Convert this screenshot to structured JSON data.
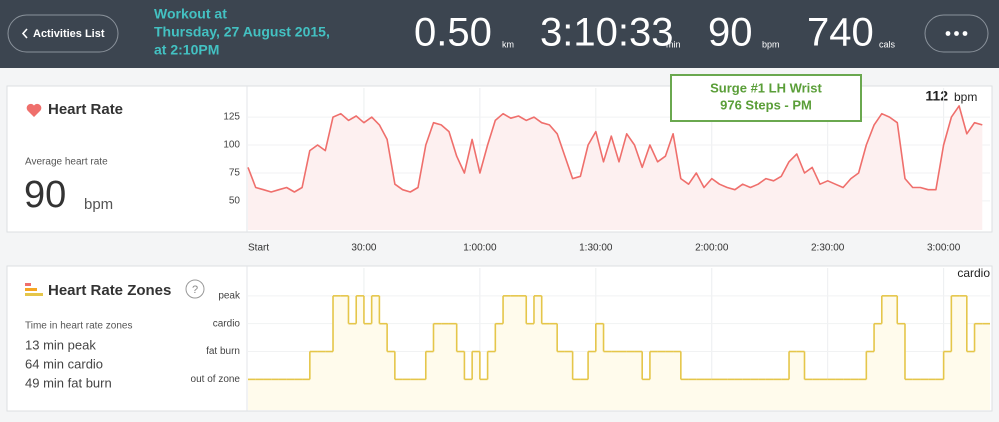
{
  "header": {
    "back_button": "Activities List",
    "workout_title": [
      "Workout at",
      "Thursday, 27 August 2015,",
      "at 2:10PM"
    ],
    "stats": [
      {
        "value": "0.50",
        "unit": "km"
      },
      {
        "value": "3:10:33",
        "unit": "min"
      },
      {
        "value": "90",
        "unit": "bpm"
      },
      {
        "value": "740",
        "unit": "cals"
      }
    ]
  },
  "annotation": [
    "Surge #1 LH Wrist",
    "976 Steps - PM"
  ],
  "chart_data": [
    {
      "type": "line",
      "title": "Heart Rate",
      "summary_label": "Average heart rate",
      "summary_value": 90,
      "summary_unit": "bpm",
      "current_value": 112,
      "current_unit": "bpm",
      "x": [
        0,
        2,
        4,
        6,
        8,
        10,
        12,
        14,
        16,
        18,
        20,
        22,
        24,
        26,
        28,
        30,
        32,
        34,
        36,
        38,
        40,
        42,
        44,
        46,
        48,
        50,
        52,
        54,
        56,
        58,
        60,
        62,
        64,
        66,
        68,
        70,
        72,
        74,
        76,
        78,
        80,
        82,
        84,
        86,
        88,
        90,
        92,
        94,
        96,
        98,
        100,
        102,
        104,
        106,
        108,
        110,
        112,
        114,
        116,
        118,
        120,
        122,
        124,
        126,
        128,
        130,
        132,
        134,
        136,
        138,
        140,
        142,
        144,
        146,
        148,
        150,
        152,
        154,
        156,
        158,
        160,
        162,
        164,
        166,
        168,
        170,
        172,
        174,
        176,
        178,
        180,
        182,
        184,
        186,
        188,
        190
      ],
      "series": [
        {
          "color": "#ef6f6c",
          "values": [
            80,
            62,
            60,
            58,
            60,
            62,
            58,
            62,
            95,
            100,
            95,
            125,
            128,
            122,
            126,
            120,
            125,
            118,
            105,
            65,
            60,
            58,
            62,
            100,
            120,
            118,
            112,
            90,
            75,
            105,
            75,
            100,
            122,
            128,
            124,
            126,
            122,
            125,
            120,
            118,
            110,
            90,
            70,
            72,
            100,
            112,
            85,
            108,
            85,
            110,
            100,
            80,
            100,
            85,
            90,
            110,
            70,
            65,
            75,
            62,
            70,
            65,
            62,
            60,
            65,
            62,
            65,
            70,
            68,
            72,
            85,
            92,
            75,
            80,
            65,
            68,
            65,
            62,
            70,
            75,
            100,
            118,
            128,
            125,
            120,
            70,
            62,
            62,
            60,
            60,
            100,
            125,
            135,
            110,
            120,
            118
          ]
        }
      ],
      "xlim": [
        0,
        192
      ],
      "xticks": [
        {
          "value": 0,
          "label": "Start"
        },
        {
          "value": 30,
          "label": "30:00"
        },
        {
          "value": 60,
          "label": "1:00:00"
        },
        {
          "value": 90,
          "label": "1:30:00"
        },
        {
          "value": 120,
          "label": "2:00:00"
        },
        {
          "value": 150,
          "label": "2:30:00"
        },
        {
          "value": 180,
          "label": "3:00:00"
        }
      ],
      "ylim": [
        24,
        151
      ],
      "yticks": [
        50,
        75,
        100,
        125
      ],
      "grid": true,
      "area_color": "#fdf0f0"
    },
    {
      "type": "step",
      "title": "Heart Rate Zones",
      "help_icon": "?",
      "summary_label": "Time in heart rate zones",
      "summary_lines": [
        "13 min peak",
        "64 min cardio",
        "49 min fat burn"
      ],
      "current_zone": "cardio",
      "x": [
        0,
        2,
        4,
        6,
        8,
        10,
        12,
        14,
        16,
        18,
        20,
        22,
        24,
        26,
        28,
        30,
        32,
        34,
        36,
        38,
        40,
        42,
        44,
        46,
        48,
        50,
        52,
        54,
        56,
        58,
        60,
        62,
        64,
        66,
        68,
        70,
        72,
        74,
        76,
        78,
        80,
        82,
        84,
        86,
        88,
        90,
        92,
        94,
        96,
        98,
        100,
        102,
        104,
        106,
        108,
        110,
        112,
        114,
        116,
        118,
        120,
        122,
        124,
        126,
        128,
        130,
        132,
        134,
        136,
        138,
        140,
        142,
        144,
        146,
        148,
        150,
        152,
        154,
        156,
        158,
        160,
        162,
        164,
        166,
        168,
        170,
        172,
        174,
        176,
        178,
        180,
        182,
        184,
        186,
        188,
        190
      ],
      "series": [
        {
          "color": "#e5c64a",
          "values": [
            0,
            0,
            0,
            0,
            0,
            0,
            0,
            0,
            1,
            1,
            1,
            3,
            3,
            2,
            3,
            2,
            3,
            2,
            1,
            0,
            0,
            0,
            0,
            1,
            2,
            2,
            2,
            1,
            0,
            1,
            0,
            1,
            2,
            3,
            3,
            3,
            2,
            3,
            2,
            2,
            1,
            1,
            0,
            0,
            1,
            2,
            1,
            1,
            1,
            1,
            1,
            0,
            1,
            1,
            1,
            1,
            0,
            0,
            0,
            0,
            0,
            0,
            0,
            0,
            0,
            0,
            0,
            0,
            0,
            0,
            1,
            1,
            0,
            0,
            0,
            0,
            0,
            0,
            0,
            0,
            1,
            2,
            3,
            3,
            2,
            0,
            0,
            0,
            0,
            0,
            1,
            3,
            3,
            1,
            2,
            2
          ]
        }
      ],
      "xlim": [
        0,
        192
      ],
      "ylim": [
        -1.1,
        4
      ],
      "yticks": [
        {
          "value": 0,
          "label": "out of zone"
        },
        {
          "value": 1,
          "label": "fat burn"
        },
        {
          "value": 2,
          "label": "cardio"
        },
        {
          "value": 3,
          "label": "peak"
        }
      ],
      "grid": true,
      "area_color": "#fffbec"
    }
  ]
}
